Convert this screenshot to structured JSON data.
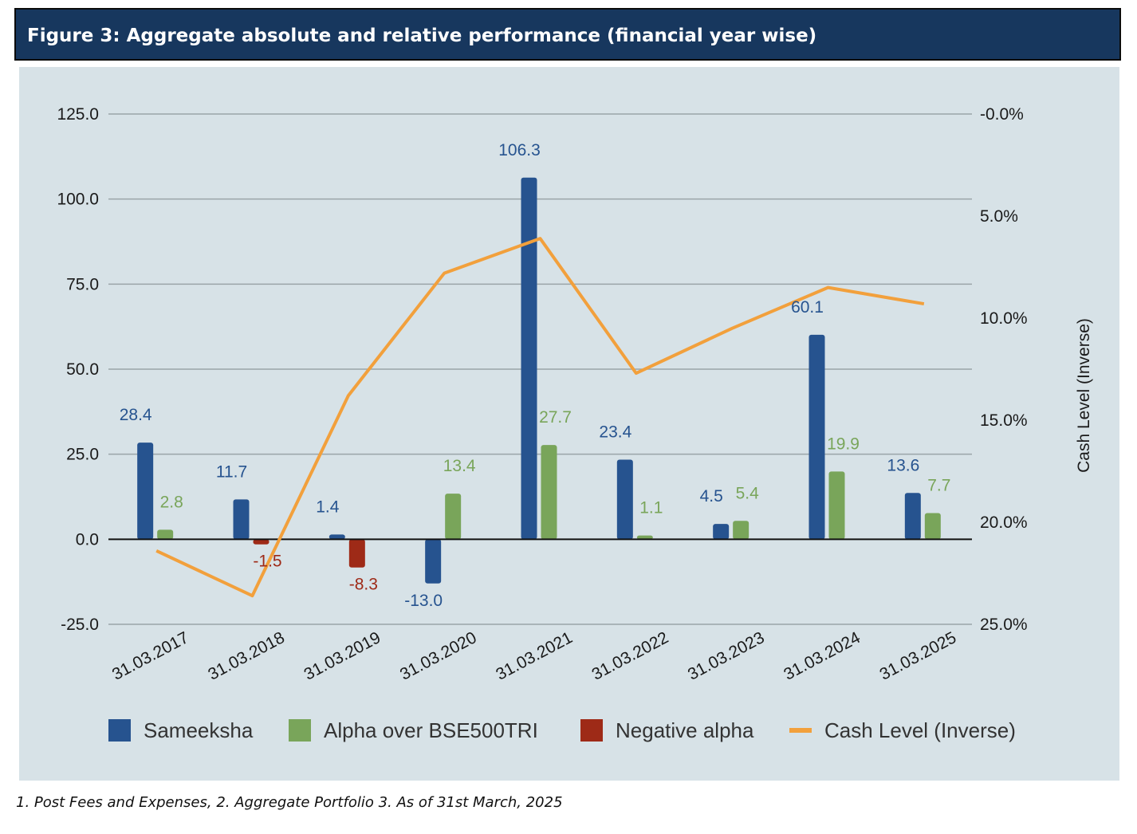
{
  "header": {
    "title": "Figure 3:  Aggregate absolute and relative performance (financial year wise)"
  },
  "footnote": "1. Post Fees and Expenses, 2. Aggregate Portfolio  3. As of 31st March, 2025",
  "colors": {
    "header_bg": "#17375e",
    "panel_bg": "#d7e2e7",
    "sameeksha": "#26538f",
    "alpha": "#79a55a",
    "negative_alpha": "#9e2a17",
    "cash_level": "#f2a03c"
  },
  "chart_data": {
    "type": "bar",
    "categories": [
      "31.03.2017",
      "31.03.2018",
      "31.03.2019",
      "31.03.2020",
      "31.03.2021",
      "31.03.2022",
      "31.03.2023",
      "31.03.2024",
      "31.03.2025"
    ],
    "series": [
      {
        "name": "Sameeksha",
        "kind": "bar",
        "axis": "left",
        "values": [
          28.4,
          11.7,
          1.4,
          -13.0,
          106.3,
          23.4,
          4.5,
          60.1,
          13.6
        ],
        "labels": [
          "28.4",
          "11.7",
          "1.4",
          "-13.0",
          "106.3",
          "23.4",
          "4.5",
          "60.1",
          "13.6"
        ]
      },
      {
        "name": "Alpha over BSE500TRI",
        "kind": "bar",
        "axis": "left",
        "values": [
          2.8,
          null,
          null,
          13.4,
          27.7,
          1.1,
          5.4,
          19.9,
          7.7
        ],
        "labels": [
          "2.8",
          "",
          "",
          "13.4",
          "27.7",
          "1.1",
          "5.4",
          "19.9",
          "7.7"
        ]
      },
      {
        "name": "Negative alpha",
        "kind": "bar",
        "axis": "left",
        "values": [
          null,
          -1.5,
          -8.3,
          null,
          null,
          null,
          null,
          null,
          null
        ],
        "labels": [
          "",
          "-1.5",
          "-8.3",
          "",
          "",
          "",
          "",
          "",
          ""
        ]
      },
      {
        "name": "Cash Level (Inverse)",
        "kind": "line",
        "axis": "right",
        "values": [
          21.4,
          23.6,
          13.8,
          7.8,
          6.1,
          12.7,
          10.5,
          8.5,
          9.3
        ]
      }
    ],
    "y_left": {
      "range": [
        -25,
        125
      ],
      "ticks": [
        "125.0",
        "100.0",
        "75.0",
        "50.0",
        "25.0",
        "0.0",
        "-25.0"
      ]
    },
    "y_right": {
      "label": "Cash Level (Inverse)",
      "range": [
        0,
        25
      ],
      "inverted": true,
      "ticks": [
        "-0.0%",
        "5.0%",
        "10.0%",
        "15.0%",
        "20.0%",
        "25.0%"
      ]
    },
    "grid": true,
    "legend": "bottom"
  }
}
